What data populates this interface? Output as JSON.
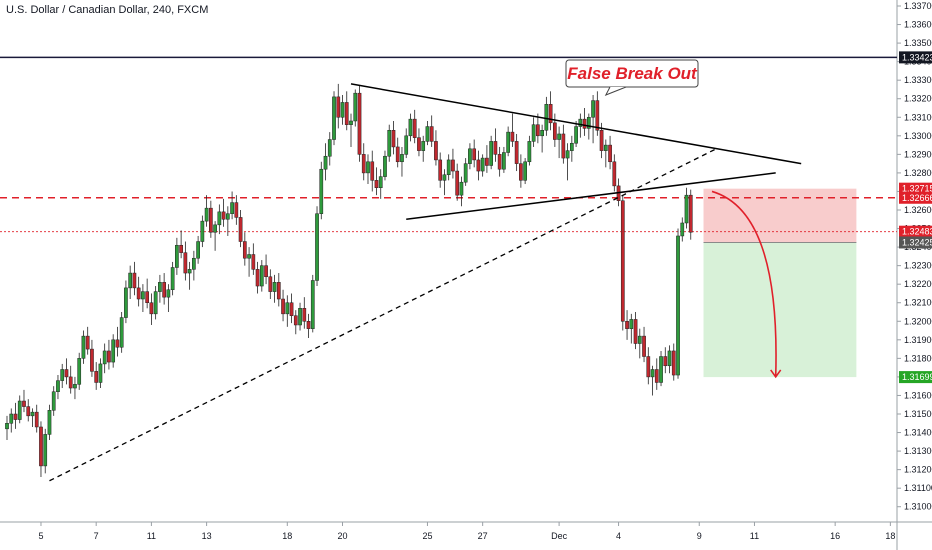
{
  "chart_data": {
    "type": "candlestick",
    "title": "U.S. Dollar / Canadian Dollar, 240, FXCM",
    "colors": {
      "up": "#26a69a",
      "down": "#ef5350",
      "candle_up_body": "#2e9a3c",
      "candle_down_body": "#c0282f",
      "trendline": "#000000",
      "resistance_line": "#1a1a3a",
      "level_dashed": "#e0202a",
      "stop_zone": "#f7c6c7",
      "target_zone": "#d4f0d4",
      "arrow": "#e0202a",
      "tag_dark": "#131722",
      "tag_red": "#e0202a",
      "tag_green": "#26a626"
    },
    "y_axis": {
      "range": [
        1.3095,
        1.337
      ],
      "ticks": [
        "1.33700",
        "1.33600",
        "1.33500",
        "1.33400",
        "1.33300",
        "1.33200",
        "1.33100",
        "1.33000",
        "1.32900",
        "1.32800",
        "1.32700",
        "1.32600",
        "1.32500",
        "1.32400",
        "1.32300",
        "1.32200",
        "1.32100",
        "1.32000",
        "1.31900",
        "1.31800",
        "1.31700",
        "1.31600",
        "1.31500",
        "1.31400",
        "1.31300",
        "1.31200",
        "1.31100",
        "1.31000"
      ]
    },
    "x_axis": {
      "range": [
        0,
        205
      ],
      "ticks": [
        {
          "i": 8,
          "label": "5"
        },
        {
          "i": 21,
          "label": "7"
        },
        {
          "i": 34,
          "label": "11"
        },
        {
          "i": 47,
          "label": "13"
        },
        {
          "i": 66,
          "label": "18"
        },
        {
          "i": 79,
          "label": "20"
        },
        {
          "i": 99,
          "label": "25"
        },
        {
          "i": 112,
          "label": "27"
        },
        {
          "i": 130,
          "label": "Dec"
        },
        {
          "i": 144,
          "label": "4"
        },
        {
          "i": 163,
          "label": "9"
        },
        {
          "i": 176,
          "label": "11"
        },
        {
          "i": 195,
          "label": "16"
        },
        {
          "i": 208,
          "label": "18"
        }
      ]
    },
    "candles": [
      [
        1.3142,
        1.3149,
        1.3136,
        1.3145
      ],
      [
        1.3145,
        1.3153,
        1.314,
        1.315
      ],
      [
        1.315,
        1.3156,
        1.3142,
        1.3147
      ],
      [
        1.3147,
        1.316,
        1.3145,
        1.3157
      ],
      [
        1.3157,
        1.3163,
        1.3151,
        1.3154
      ],
      [
        1.3154,
        1.3158,
        1.3146,
        1.3149
      ],
      [
        1.3149,
        1.3153,
        1.3143,
        1.3151
      ],
      [
        1.3151,
        1.3155,
        1.314,
        1.3143
      ],
      [
        1.3143,
        1.3146,
        1.3116,
        1.3122
      ],
      [
        1.3122,
        1.3142,
        1.3118,
        1.3139
      ],
      [
        1.3139,
        1.3155,
        1.3136,
        1.3152
      ],
      [
        1.3152,
        1.3165,
        1.3149,
        1.3162
      ],
      [
        1.3162,
        1.3171,
        1.3158,
        1.3168
      ],
      [
        1.3168,
        1.3177,
        1.3164,
        1.3174
      ],
      [
        1.3174,
        1.318,
        1.3166,
        1.317
      ],
      [
        1.317,
        1.3176,
        1.3161,
        1.3164
      ],
      [
        1.3164,
        1.317,
        1.3158,
        1.3166
      ],
      [
        1.3166,
        1.3183,
        1.3163,
        1.318
      ],
      [
        1.318,
        1.3195,
        1.3177,
        1.3192
      ],
      [
        1.3192,
        1.3197,
        1.3182,
        1.3185
      ],
      [
        1.3185,
        1.319,
        1.317,
        1.3173
      ],
      [
        1.3173,
        1.3178,
        1.3163,
        1.3167
      ],
      [
        1.3167,
        1.318,
        1.3164,
        1.3177
      ],
      [
        1.3177,
        1.3188,
        1.3172,
        1.3184
      ],
      [
        1.3184,
        1.319,
        1.3174,
        1.3178
      ],
      [
        1.3178,
        1.3193,
        1.3175,
        1.319
      ],
      [
        1.319,
        1.3197,
        1.3181,
        1.3186
      ],
      [
        1.3186,
        1.3205,
        1.3183,
        1.3202
      ],
      [
        1.3202,
        1.3222,
        1.3199,
        1.3218
      ],
      [
        1.3218,
        1.323,
        1.3212,
        1.3226
      ],
      [
        1.3226,
        1.3232,
        1.3214,
        1.3218
      ],
      [
        1.3218,
        1.3224,
        1.3208,
        1.3212
      ],
      [
        1.3212,
        1.322,
        1.3205,
        1.3216
      ],
      [
        1.3216,
        1.3223,
        1.3207,
        1.321
      ],
      [
        1.321,
        1.3215,
        1.3198,
        1.3204
      ],
      [
        1.3204,
        1.3219,
        1.3201,
        1.3216
      ],
      [
        1.3216,
        1.3225,
        1.321,
        1.3221
      ],
      [
        1.3221,
        1.3226,
        1.3209,
        1.3213
      ],
      [
        1.3213,
        1.322,
        1.3205,
        1.3217
      ],
      [
        1.3217,
        1.3232,
        1.3214,
        1.3229
      ],
      [
        1.3229,
        1.3245,
        1.3225,
        1.3241
      ],
      [
        1.3241,
        1.3249,
        1.3234,
        1.3237
      ],
      [
        1.3237,
        1.3243,
        1.3222,
        1.3226
      ],
      [
        1.3226,
        1.3232,
        1.3217,
        1.3228
      ],
      [
        1.3228,
        1.3238,
        1.3222,
        1.3234
      ],
      [
        1.3234,
        1.3246,
        1.3231,
        1.3243
      ],
      [
        1.3243,
        1.3257,
        1.324,
        1.3254
      ],
      [
        1.3254,
        1.3268,
        1.3251,
        1.3261
      ],
      [
        1.3261,
        1.3265,
        1.3245,
        1.3248
      ],
      [
        1.3248,
        1.3254,
        1.3238,
        1.3252
      ],
      [
        1.3252,
        1.3263,
        1.3247,
        1.3259
      ],
      [
        1.3259,
        1.3266,
        1.3251,
        1.3255
      ],
      [
        1.3255,
        1.3262,
        1.3246,
        1.3258
      ],
      [
        1.3258,
        1.327,
        1.3255,
        1.3264
      ],
      [
        1.3264,
        1.3268,
        1.3252,
        1.3256
      ],
      [
        1.3256,
        1.326,
        1.324,
        1.3243
      ],
      [
        1.3243,
        1.3248,
        1.323,
        1.3234
      ],
      [
        1.3234,
        1.324,
        1.3224,
        1.3236
      ],
      [
        1.3236,
        1.3242,
        1.3225,
        1.3228
      ],
      [
        1.3228,
        1.3232,
        1.3215,
        1.3219
      ],
      [
        1.3219,
        1.3233,
        1.3216,
        1.323
      ],
      [
        1.323,
        1.3236,
        1.322,
        1.3224
      ],
      [
        1.3224,
        1.3228,
        1.3212,
        1.3216
      ],
      [
        1.3216,
        1.3225,
        1.321,
        1.3221
      ],
      [
        1.3221,
        1.3226,
        1.3208,
        1.3212
      ],
      [
        1.3212,
        1.3217,
        1.32,
        1.3204
      ],
      [
        1.3204,
        1.3214,
        1.3197,
        1.321
      ],
      [
        1.321,
        1.3215,
        1.3199,
        1.3203
      ],
      [
        1.3203,
        1.3206,
        1.3193,
        1.3198
      ],
      [
        1.3198,
        1.321,
        1.3195,
        1.3207
      ],
      [
        1.3207,
        1.3213,
        1.3196,
        1.32
      ],
      [
        1.32,
        1.3204,
        1.3191,
        1.3196
      ],
      [
        1.3196,
        1.3225,
        1.3194,
        1.3222
      ],
      [
        1.3222,
        1.3262,
        1.3219,
        1.3258
      ],
      [
        1.3258,
        1.3286,
        1.3255,
        1.3282
      ],
      [
        1.3282,
        1.3296,
        1.3276,
        1.3289
      ],
      [
        1.3289,
        1.3302,
        1.3284,
        1.3298
      ],
      [
        1.3298,
        1.3324,
        1.3295,
        1.3321
      ],
      [
        1.3321,
        1.3328,
        1.3304,
        1.331
      ],
      [
        1.331,
        1.3322,
        1.3306,
        1.3318
      ],
      [
        1.3318,
        1.3324,
        1.3303,
        1.3306
      ],
      [
        1.3306,
        1.3312,
        1.3294,
        1.3308
      ],
      [
        1.3308,
        1.3325,
        1.3305,
        1.3323
      ],
      [
        1.3323,
        1.3327,
        1.3286,
        1.329
      ],
      [
        1.329,
        1.3296,
        1.3276,
        1.328
      ],
      [
        1.328,
        1.329,
        1.3274,
        1.3286
      ],
      [
        1.3286,
        1.3292,
        1.327,
        1.3276
      ],
      [
        1.3276,
        1.3283,
        1.3268,
        1.3272
      ],
      [
        1.3272,
        1.3282,
        1.3266,
        1.3278
      ],
      [
        1.3278,
        1.3292,
        1.3276,
        1.3289
      ],
      [
        1.3289,
        1.3306,
        1.3286,
        1.3303
      ],
      [
        1.3303,
        1.3308,
        1.329,
        1.3294
      ],
      [
        1.3294,
        1.3299,
        1.3283,
        1.3286
      ],
      [
        1.3286,
        1.3294,
        1.3278,
        1.329
      ],
      [
        1.329,
        1.3304,
        1.3288,
        1.33
      ],
      [
        1.33,
        1.3312,
        1.3297,
        1.3309
      ],
      [
        1.3309,
        1.3314,
        1.3296,
        1.3299
      ],
      [
        1.3299,
        1.3304,
        1.3289,
        1.3292
      ],
      [
        1.3292,
        1.33,
        1.3286,
        1.3297
      ],
      [
        1.3297,
        1.3308,
        1.3295,
        1.3305
      ],
      [
        1.3305,
        1.3311,
        1.3294,
        1.3297
      ],
      [
        1.3297,
        1.3303,
        1.3284,
        1.3287
      ],
      [
        1.3287,
        1.3291,
        1.3272,
        1.3276
      ],
      [
        1.3276,
        1.3282,
        1.3268,
        1.3279
      ],
      [
        1.3279,
        1.329,
        1.3276,
        1.3287
      ],
      [
        1.3287,
        1.3293,
        1.3277,
        1.3281
      ],
      [
        1.3281,
        1.3285,
        1.3265,
        1.3268
      ],
      [
        1.3268,
        1.3278,
        1.3262,
        1.3275
      ],
      [
        1.3275,
        1.3288,
        1.3273,
        1.3285
      ],
      [
        1.3285,
        1.3296,
        1.3282,
        1.3293
      ],
      [
        1.3293,
        1.3298,
        1.3283,
        1.3287
      ],
      [
        1.3287,
        1.3292,
        1.3276,
        1.3281
      ],
      [
        1.3281,
        1.329,
        1.3278,
        1.3288
      ],
      [
        1.3288,
        1.3295,
        1.328,
        1.3284
      ],
      [
        1.3284,
        1.33,
        1.3282,
        1.3297
      ],
      [
        1.3297,
        1.3304,
        1.3286,
        1.329
      ],
      [
        1.329,
        1.3294,
        1.3278,
        1.3282
      ],
      [
        1.3282,
        1.3294,
        1.328,
        1.3291
      ],
      [
        1.3291,
        1.3305,
        1.3289,
        1.3302
      ],
      [
        1.3302,
        1.3312,
        1.3294,
        1.3297
      ],
      [
        1.3297,
        1.3301,
        1.3281,
        1.3285
      ],
      [
        1.3285,
        1.329,
        1.3272,
        1.3276
      ],
      [
        1.3276,
        1.3288,
        1.3274,
        1.3286
      ],
      [
        1.3286,
        1.33,
        1.3284,
        1.3297
      ],
      [
        1.3297,
        1.331,
        1.3294,
        1.3306
      ],
      [
        1.3306,
        1.3312,
        1.3296,
        1.33
      ],
      [
        1.33,
        1.3306,
        1.3291,
        1.3303
      ],
      [
        1.3303,
        1.3321,
        1.33,
        1.3317
      ],
      [
        1.3317,
        1.3324,
        1.3303,
        1.3307
      ],
      [
        1.3307,
        1.3312,
        1.3294,
        1.3298
      ],
      [
        1.3298,
        1.3305,
        1.3288,
        1.3301
      ],
      [
        1.3301,
        1.3306,
        1.3285,
        1.3288
      ],
      [
        1.3288,
        1.3296,
        1.3276,
        1.3292
      ],
      [
        1.3292,
        1.33,
        1.3286,
        1.3296
      ],
      [
        1.3296,
        1.3308,
        1.3294,
        1.3305
      ],
      [
        1.3305,
        1.3312,
        1.3299,
        1.3309
      ],
      [
        1.3309,
        1.3315,
        1.33,
        1.3304
      ],
      [
        1.3304,
        1.3312,
        1.3298,
        1.331
      ],
      [
        1.331,
        1.3322,
        1.3296,
        1.3319
      ],
      [
        1.3319,
        1.3324,
        1.33,
        1.3303
      ],
      [
        1.3303,
        1.3307,
        1.3288,
        1.3292
      ],
      [
        1.3292,
        1.3298,
        1.3283,
        1.3295
      ],
      [
        1.3295,
        1.33,
        1.3282,
        1.3286
      ],
      [
        1.3286,
        1.329,
        1.327,
        1.3273
      ],
      [
        1.3273,
        1.3277,
        1.3262,
        1.3265
      ],
      [
        1.3265,
        1.3268,
        1.3195,
        1.32
      ],
      [
        1.32,
        1.3206,
        1.319,
        1.3196
      ],
      [
        1.3196,
        1.3204,
        1.3188,
        1.3201
      ],
      [
        1.3201,
        1.3205,
        1.3185,
        1.3188
      ],
      [
        1.3188,
        1.3196,
        1.318,
        1.3192
      ],
      [
        1.3192,
        1.3197,
        1.3178,
        1.3181
      ],
      [
        1.3181,
        1.3186,
        1.3166,
        1.317
      ],
      [
        1.317,
        1.3176,
        1.316,
        1.3174
      ],
      [
        1.3174,
        1.318,
        1.3163,
        1.3167
      ],
      [
        1.3167,
        1.3184,
        1.3165,
        1.3181
      ],
      [
        1.3181,
        1.3186,
        1.3172,
        1.3176
      ],
      [
        1.3176,
        1.3187,
        1.3172,
        1.3184
      ],
      [
        1.3184,
        1.3188,
        1.3168,
        1.3171
      ],
      [
        1.3171,
        1.325,
        1.3169,
        1.3246
      ],
      [
        1.3246,
        1.3256,
        1.3243,
        1.3253
      ],
      [
        1.3253,
        1.3272,
        1.325,
        1.3268
      ],
      [
        1.3268,
        1.3271,
        1.3244,
        1.3248
      ]
    ],
    "levels": {
      "resistance": 1.33423,
      "false_breakout": 1.32666,
      "current_price": 1.32483,
      "entry": 1.32425,
      "stop": 1.32715,
      "target": 1.31699
    },
    "price_tags": [
      "1.33423",
      "1.32715",
      "1.32666",
      "1.32483",
      "1.32425",
      "1.31699"
    ],
    "trendlines": {
      "triangle_upper": [
        [
          81,
          1.3328
        ],
        [
          187,
          1.3285
        ]
      ],
      "triangle_lower": [
        [
          94,
          1.3255
        ],
        [
          181,
          1.328
        ]
      ],
      "diagonal_support": [
        [
          10,
          1.3114
        ],
        [
          167,
          1.3293
        ]
      ]
    },
    "zones": {
      "x_range": [
        164,
        200
      ],
      "stop_zone": [
        1.32425,
        1.32715
      ],
      "target_zone": [
        1.31699,
        1.32425
      ]
    },
    "annotation": "False Break Out",
    "annotation_anchor": [
      141,
      1.3322
    ],
    "projection_arrow": {
      "from": [
        166,
        1.327
      ],
      "to": [
        181,
        1.317
      ]
    }
  }
}
